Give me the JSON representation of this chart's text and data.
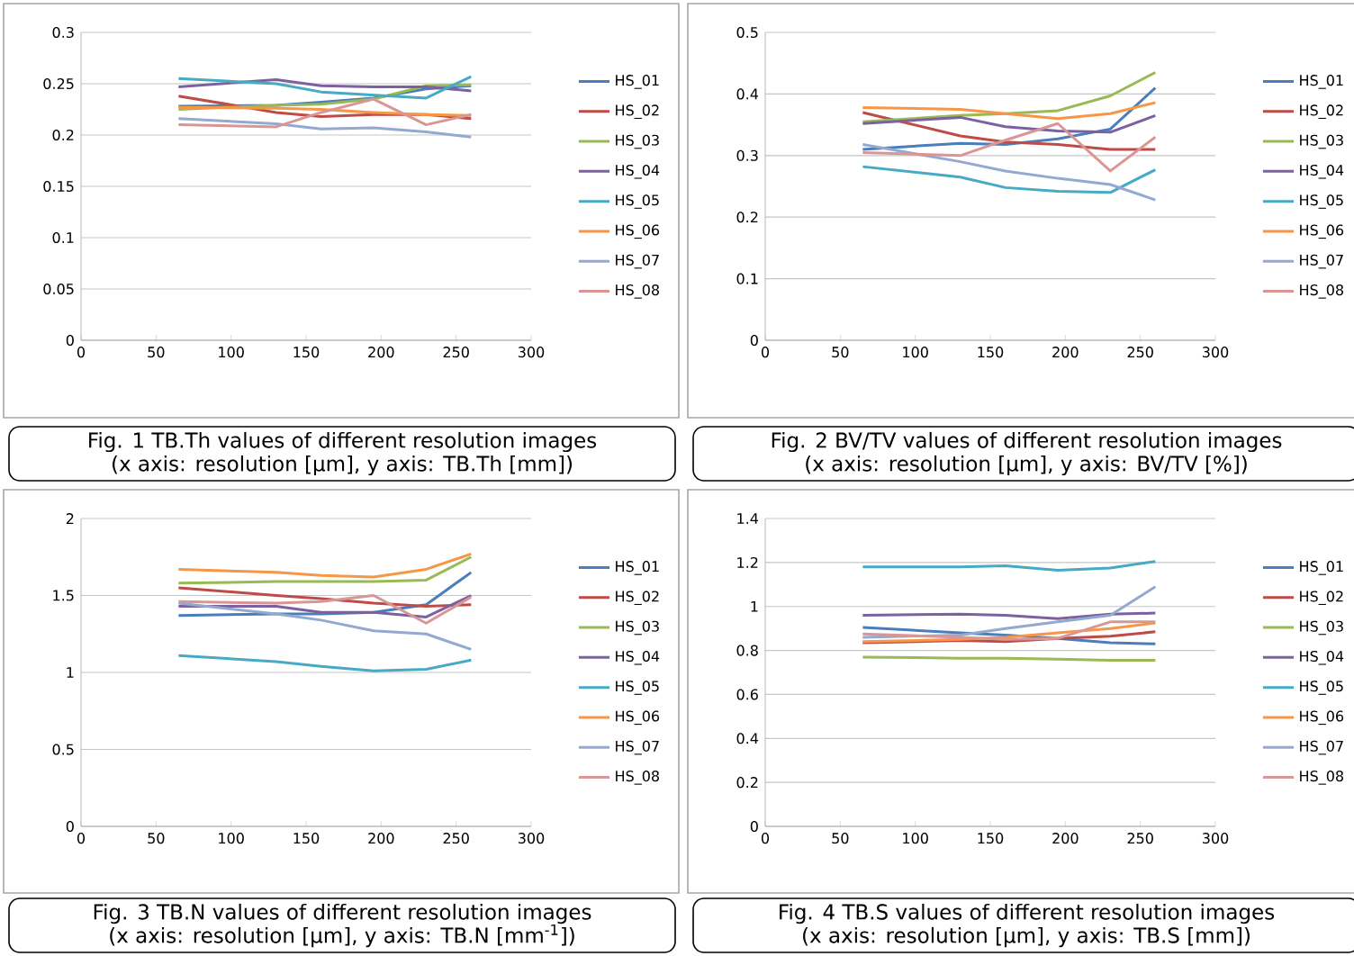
{
  "chart_data": [
    {
      "type": "line",
      "title": "Fig. 1 TB.Th values of different resolution images",
      "subtitle": "(x axis: resolution [μm], y axis: TB.Th [mm])",
      "x": [
        65,
        130,
        160,
        195,
        230,
        260
      ],
      "xlim": [
        0,
        300
      ],
      "xticks": [
        0,
        50,
        100,
        150,
        200,
        250,
        300
      ],
      "ylim": [
        0,
        0.3
      ],
      "yticks": [
        0,
        0.05,
        0.1,
        0.15,
        0.2,
        0.25,
        0.3
      ],
      "grid": "y",
      "legend": "right",
      "series": [
        {
          "name": "HS_01",
          "color": "#4a7ebb",
          "values": [
            0.228,
            0.229,
            0.232,
            0.236,
            0.245,
            0.248
          ]
        },
        {
          "name": "HS_02",
          "color": "#be4b48",
          "values": [
            0.238,
            0.222,
            0.218,
            0.22,
            0.22,
            0.216
          ]
        },
        {
          "name": "HS_03",
          "color": "#98b954",
          "values": [
            0.225,
            0.229,
            0.23,
            0.235,
            0.248,
            0.249
          ]
        },
        {
          "name": "HS_04",
          "color": "#7d60a0",
          "values": [
            0.247,
            0.254,
            0.248,
            0.247,
            0.247,
            0.243
          ]
        },
        {
          "name": "HS_05",
          "color": "#46aac5",
          "values": [
            0.255,
            0.25,
            0.242,
            0.239,
            0.236,
            0.257
          ]
        },
        {
          "name": "HS_06",
          "color": "#f79646",
          "values": [
            0.227,
            0.226,
            0.225,
            0.222,
            0.22,
            0.219
          ]
        },
        {
          "name": "HS_07",
          "color": "#93a9cf",
          "values": [
            0.216,
            0.211,
            0.206,
            0.207,
            0.203,
            0.198
          ]
        },
        {
          "name": "HS_08",
          "color": "#d99694",
          "values": [
            0.21,
            0.208,
            0.222,
            0.235,
            0.21,
            0.22
          ]
        }
      ]
    },
    {
      "type": "line",
      "title": "Fig. 2 BV/TV values of different resolution images",
      "subtitle": "(x axis: resolution [μm], y axis: BV/TV [%])",
      "x": [
        65,
        130,
        160,
        195,
        230,
        260
      ],
      "xlim": [
        0,
        300
      ],
      "xticks": [
        0,
        50,
        100,
        150,
        200,
        250,
        300
      ],
      "ylim": [
        0,
        0.5
      ],
      "yticks": [
        0,
        0.1,
        0.2,
        0.3,
        0.4,
        0.5
      ],
      "grid": "y",
      "legend": "right",
      "series": [
        {
          "name": "HS_01",
          "color": "#4a7ebb",
          "values": [
            0.31,
            0.32,
            0.318,
            0.327,
            0.343,
            0.41
          ]
        },
        {
          "name": "HS_02",
          "color": "#be4b48",
          "values": [
            0.37,
            0.332,
            0.322,
            0.318,
            0.31,
            0.31
          ]
        },
        {
          "name": "HS_03",
          "color": "#98b954",
          "values": [
            0.355,
            0.365,
            0.368,
            0.373,
            0.397,
            0.435
          ]
        },
        {
          "name": "HS_04",
          "color": "#7d60a0",
          "values": [
            0.352,
            0.362,
            0.347,
            0.34,
            0.338,
            0.365
          ]
        },
        {
          "name": "HS_05",
          "color": "#46aac5",
          "values": [
            0.282,
            0.265,
            0.248,
            0.242,
            0.24,
            0.277
          ]
        },
        {
          "name": "HS_06",
          "color": "#f79646",
          "values": [
            0.378,
            0.375,
            0.368,
            0.36,
            0.368,
            0.386
          ]
        },
        {
          "name": "HS_07",
          "color": "#93a9cf",
          "values": [
            0.318,
            0.29,
            0.275,
            0.263,
            0.253,
            0.228
          ]
        },
        {
          "name": "HS_08",
          "color": "#d99694",
          "values": [
            0.305,
            0.3,
            0.325,
            0.352,
            0.275,
            0.33
          ]
        }
      ]
    },
    {
      "type": "line",
      "title": "Fig. 3 TB.N values of different resolution images",
      "subtitle": "(x axis: resolution [μm], y axis: TB.N [mm$^{-1}$])",
      "x": [
        65,
        130,
        160,
        195,
        230,
        260
      ],
      "xlim": [
        0,
        300
      ],
      "xticks": [
        0,
        50,
        100,
        150,
        200,
        250,
        300
      ],
      "ylim": [
        0,
        2
      ],
      "yticks": [
        0,
        0.5,
        1,
        1.5,
        2
      ],
      "grid": "y",
      "legend": "right",
      "series": [
        {
          "name": "HS_01",
          "color": "#4a7ebb",
          "values": [
            1.37,
            1.38,
            1.38,
            1.39,
            1.44,
            1.65
          ]
        },
        {
          "name": "HS_02",
          "color": "#be4b48",
          "values": [
            1.55,
            1.5,
            1.48,
            1.45,
            1.43,
            1.44
          ]
        },
        {
          "name": "HS_03",
          "color": "#98b954",
          "values": [
            1.58,
            1.59,
            1.59,
            1.59,
            1.6,
            1.75
          ]
        },
        {
          "name": "HS_04",
          "color": "#7d60a0",
          "values": [
            1.43,
            1.43,
            1.39,
            1.39,
            1.36,
            1.5
          ]
        },
        {
          "name": "HS_05",
          "color": "#46aac5",
          "values": [
            1.11,
            1.07,
            1.04,
            1.01,
            1.02,
            1.08
          ]
        },
        {
          "name": "HS_06",
          "color": "#f79646",
          "values": [
            1.67,
            1.65,
            1.63,
            1.62,
            1.67,
            1.77
          ]
        },
        {
          "name": "HS_07",
          "color": "#93a9cf",
          "values": [
            1.45,
            1.38,
            1.34,
            1.27,
            1.25,
            1.15
          ]
        },
        {
          "name": "HS_08",
          "color": "#d99694",
          "values": [
            1.46,
            1.45,
            1.46,
            1.5,
            1.32,
            1.49
          ]
        }
      ]
    },
    {
      "type": "line",
      "title": "Fig. 4 TB.S values of different resolution images",
      "subtitle": "(x axis: resolution [μm], y axis: TB.S [mm])",
      "x": [
        65,
        130,
        160,
        195,
        230,
        260
      ],
      "xlim": [
        0,
        300
      ],
      "xticks": [
        0,
        50,
        100,
        150,
        200,
        250,
        300
      ],
      "ylim": [
        0,
        1.4
      ],
      "yticks": [
        0,
        0.2,
        0.4,
        0.6,
        0.8,
        1,
        1.2,
        1.4
      ],
      "grid": "y",
      "legend": "right",
      "series": [
        {
          "name": "HS_01",
          "color": "#4a7ebb",
          "values": [
            0.905,
            0.88,
            0.87,
            0.855,
            0.835,
            0.83
          ]
        },
        {
          "name": "HS_02",
          "color": "#be4b48",
          "values": [
            0.835,
            0.845,
            0.84,
            0.855,
            0.865,
            0.885
          ]
        },
        {
          "name": "HS_03",
          "color": "#98b954",
          "values": [
            0.77,
            0.765,
            0.765,
            0.76,
            0.755,
            0.755
          ]
        },
        {
          "name": "HS_04",
          "color": "#7d60a0",
          "values": [
            0.96,
            0.965,
            0.96,
            0.945,
            0.965,
            0.97
          ]
        },
        {
          "name": "HS_05",
          "color": "#46aac5",
          "values": [
            1.18,
            1.18,
            1.185,
            1.165,
            1.175,
            1.205
          ]
        },
        {
          "name": "HS_06",
          "color": "#f79646",
          "values": [
            0.84,
            0.85,
            0.86,
            0.88,
            0.9,
            0.925
          ]
        },
        {
          "name": "HS_07",
          "color": "#93a9cf",
          "values": [
            0.86,
            0.87,
            0.9,
            0.93,
            0.96,
            1.09
          ]
        },
        {
          "name": "HS_08",
          "color": "#d99694",
          "values": [
            0.875,
            0.86,
            0.85,
            0.855,
            0.93,
            0.93
          ]
        }
      ]
    }
  ]
}
